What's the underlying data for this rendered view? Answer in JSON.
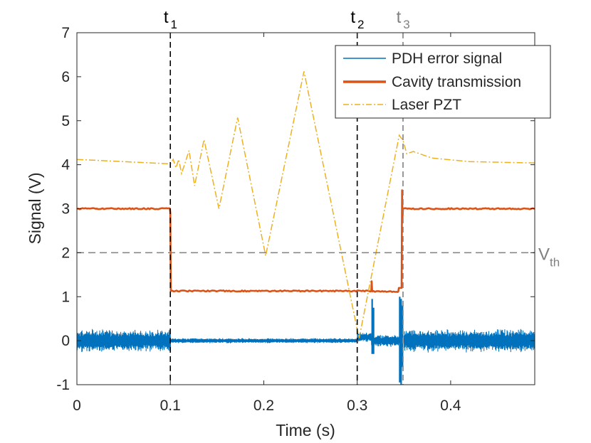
{
  "chart_data": {
    "type": "line",
    "xlabel": "Time (s)",
    "ylabel": "Signal (V)",
    "xlim": [
      0,
      0.49
    ],
    "ylim": [
      -1,
      7
    ],
    "x_ticks": [
      {
        "value": 0,
        "label": "0"
      },
      {
        "value": 0.1,
        "label": "0.1"
      },
      {
        "value": 0.2,
        "label": "0.2"
      },
      {
        "value": 0.3,
        "label": "0.3"
      },
      {
        "value": 0.4,
        "label": "0.4"
      }
    ],
    "y_ticks": [
      {
        "value": -1,
        "label": "-1"
      },
      {
        "value": 0,
        "label": "0"
      },
      {
        "value": 1,
        "label": "1"
      },
      {
        "value": 2,
        "label": "2"
      },
      {
        "value": 3,
        "label": "3"
      },
      {
        "value": 4,
        "label": "4"
      },
      {
        "value": 5,
        "label": "5"
      },
      {
        "value": 6,
        "label": "6"
      },
      {
        "value": 7,
        "label": "7"
      }
    ],
    "series": [
      {
        "name": "PDH error signal",
        "color": "#0072BD",
        "style": "solid-noise",
        "segments": [
          {
            "x0": 0.0,
            "x1": 0.1,
            "center": 0.0,
            "amplitude": 0.27
          },
          {
            "x0": 0.1,
            "x1": 0.3,
            "center": 0.0,
            "amplitude": 0.06
          },
          {
            "x0": 0.3,
            "x1": 0.315,
            "center": 0.08,
            "amplitude": 0.12
          },
          {
            "x0": 0.315,
            "x1": 0.345,
            "center": 0.0,
            "amplitude": 0.15
          },
          {
            "x0": 0.35,
            "x1": 0.49,
            "center": 0.0,
            "amplitude": 0.27
          }
        ],
        "spikes": [
          {
            "x": 0.316,
            "min": -0.3,
            "max": 0.95
          },
          {
            "x": 0.3175,
            "min": -0.3,
            "max": 0.75
          },
          {
            "x": 0.3455,
            "min": -0.95,
            "max": 1.0
          },
          {
            "x": 0.347,
            "min": -1.0,
            "max": 0.95
          },
          {
            "x": 0.3485,
            "min": -0.6,
            "max": 0.8
          }
        ]
      },
      {
        "name": "Cavity transmission",
        "color": "#D95319",
        "style": "solid-thick",
        "points": [
          [
            0.0,
            3.0
          ],
          [
            0.0995,
            3.0
          ],
          [
            0.1,
            2.9
          ],
          [
            0.1005,
            1.13
          ],
          [
            0.315,
            1.13
          ],
          [
            0.3155,
            1.35
          ],
          [
            0.316,
            1.12
          ],
          [
            0.344,
            1.12
          ],
          [
            0.3445,
            1.2
          ],
          [
            0.3475,
            1.2
          ],
          [
            0.348,
            3.42
          ],
          [
            0.3485,
            2.8
          ],
          [
            0.349,
            3.0
          ],
          [
            0.49,
            3.0
          ]
        ]
      },
      {
        "name": "Laser PZT",
        "color": "#EDB120",
        "style": "dash-dot",
        "points": [
          [
            0.0,
            4.12
          ],
          [
            0.1,
            4.02
          ],
          [
            0.103,
            4.12
          ],
          [
            0.106,
            3.93
          ],
          [
            0.109,
            4.12
          ],
          [
            0.112,
            3.8
          ],
          [
            0.12,
            4.32
          ],
          [
            0.126,
            3.52
          ],
          [
            0.136,
            4.57
          ],
          [
            0.152,
            3.0
          ],
          [
            0.172,
            5.07
          ],
          [
            0.202,
            1.93
          ],
          [
            0.243,
            6.12
          ],
          [
            0.302,
            0.05
          ],
          [
            0.345,
            4.67
          ],
          [
            0.349,
            4.55
          ],
          [
            0.353,
            4.25
          ],
          [
            0.36,
            4.3
          ],
          [
            0.38,
            4.15
          ],
          [
            0.42,
            4.07
          ],
          [
            0.49,
            4.04
          ]
        ]
      }
    ],
    "reference_lines": [
      {
        "orientation": "vertical",
        "x": 0.1,
        "label": "t",
        "subscript": "1",
        "color": "#000000"
      },
      {
        "orientation": "vertical",
        "x": 0.3,
        "label": "t",
        "subscript": "2",
        "color": "#000000"
      },
      {
        "orientation": "vertical",
        "x": 0.349,
        "label": "t",
        "subscript": "3",
        "color": "#808080"
      },
      {
        "orientation": "horizontal",
        "y": 2.0,
        "label": "V",
        "subscript": "th",
        "color": "#808080"
      }
    ],
    "legend": {
      "position": "top-right",
      "entries": [
        "PDH error signal",
        "Cavity transmission",
        "Laser PZT"
      ]
    },
    "grid": false
  }
}
